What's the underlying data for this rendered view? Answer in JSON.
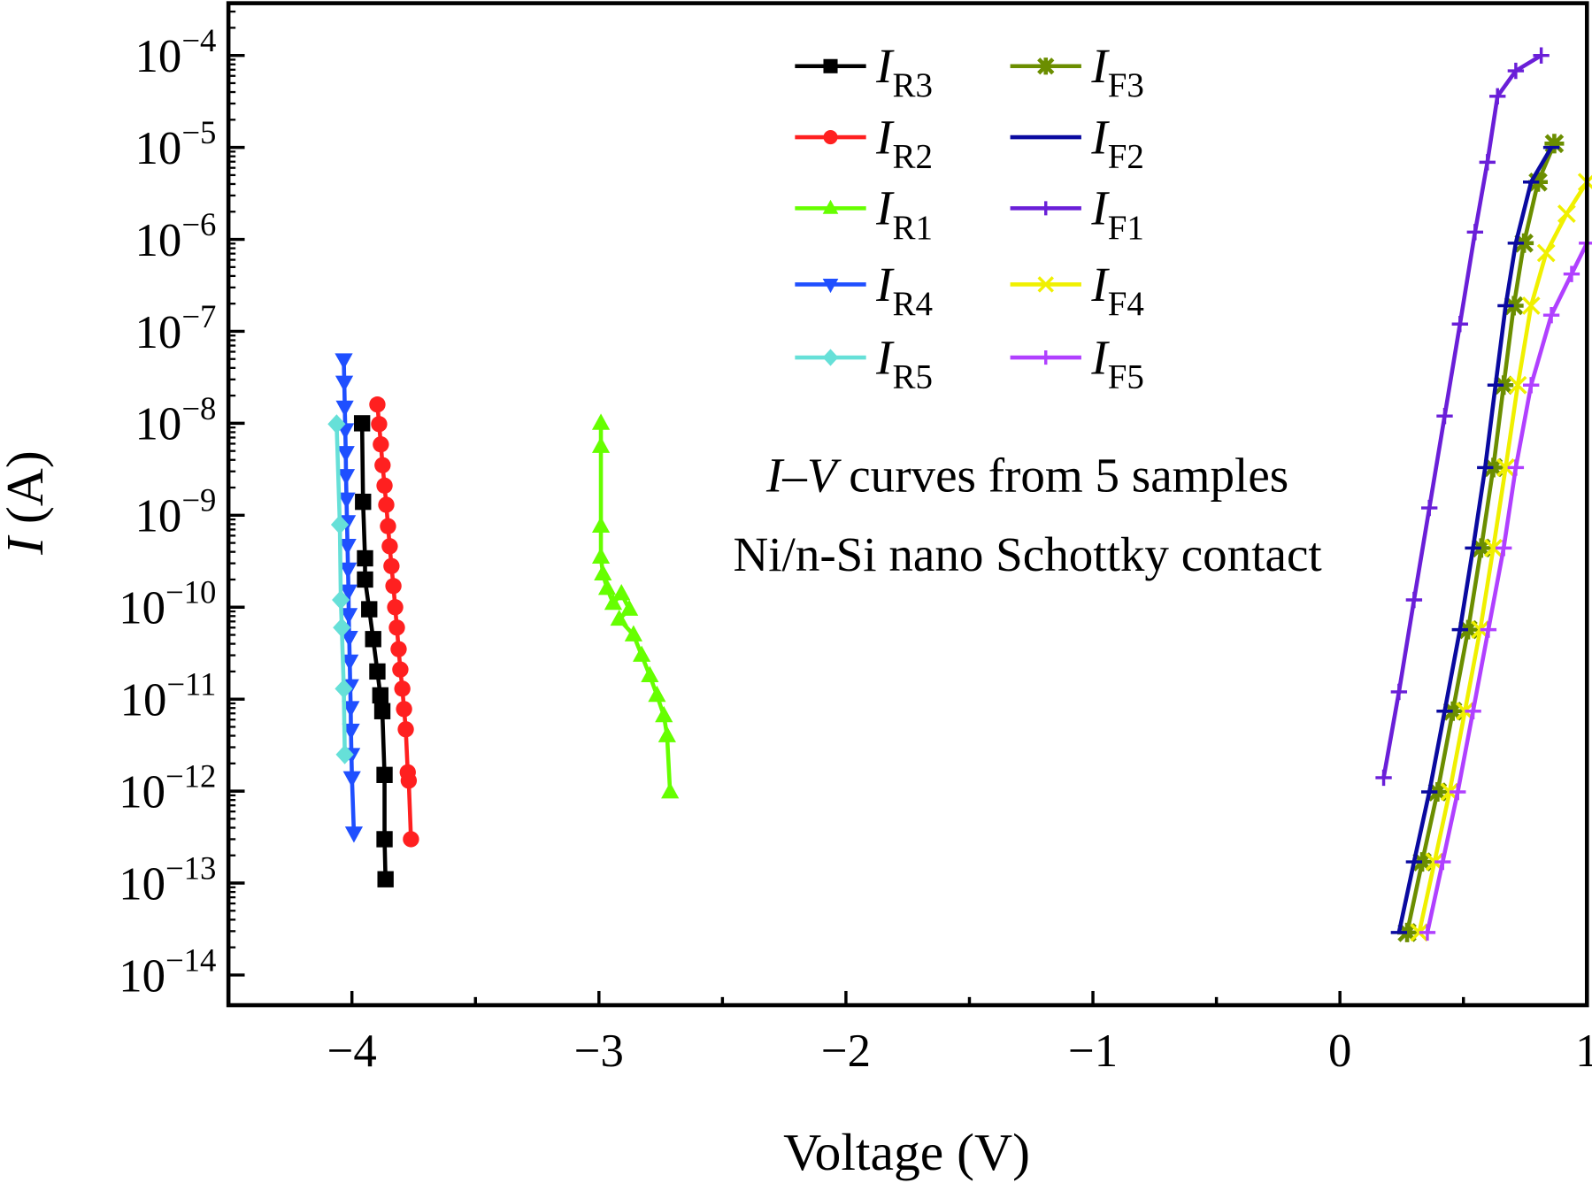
{
  "chart_data": {
    "type": "scatter",
    "xlabel": "Voltage (V)",
    "ylabel": {
      "main": "I",
      "unit": " (A)"
    },
    "xlim": [
      -4.5,
      1
    ],
    "ylim": [
      4.7e-15,
      0.00037
    ],
    "yscale": "log",
    "grid": false,
    "legend_placement": "top-center",
    "x_ticks": [
      -4,
      -3,
      -2,
      -1,
      0,
      1
    ],
    "x_tick_labels": [
      "−4",
      "−3",
      "−2",
      "−1",
      "0",
      "1"
    ],
    "y_ticks": [
      0.0001,
      1e-05,
      1e-06,
      1e-07,
      1e-08,
      1e-09,
      1e-10,
      1e-11,
      1e-12,
      1e-13,
      1e-14
    ],
    "y_tick_labels": [
      {
        "base": "10",
        "exp": "−4"
      },
      {
        "base": "10",
        "exp": "−5"
      },
      {
        "base": "10",
        "exp": "−6"
      },
      {
        "base": "10",
        "exp": "−7"
      },
      {
        "base": "10",
        "exp": "−8"
      },
      {
        "base": "10",
        "exp": "−9"
      },
      {
        "base": "10",
        "exp": "−10"
      },
      {
        "base": "10",
        "exp": "−11"
      },
      {
        "base": "10",
        "exp": "−12"
      },
      {
        "base": "10",
        "exp": "−13"
      },
      {
        "base": "10",
        "exp": "−14"
      }
    ],
    "annotations": [
      {
        "italic": "I–V",
        "text": " curves from 5 samples"
      },
      {
        "italic": "",
        "text": "Ni/n-Si  nano Schottky contact"
      }
    ],
    "series": [
      {
        "name": {
          "main": "I",
          "sub": "R3"
        },
        "color": "#000000",
        "marker": "square",
        "x": [
          -3.959,
          -3.955,
          -3.947,
          -3.947,
          -3.93,
          -3.914,
          -3.897,
          -3.885,
          -3.877,
          -3.868,
          -3.868,
          -3.864
        ],
        "y": [
          1e-08,
          1.4e-09,
          3.4e-10,
          2e-10,
          9.5e-11,
          4.5e-11,
          2e-11,
          1.1e-11,
          7.4e-12,
          1.5e-12,
          3e-13,
          1.1e-13
        ]
      },
      {
        "name": {
          "main": "I",
          "sub": "R2"
        },
        "color": "#ff2020",
        "marker": "circle",
        "x": [
          -3.897,
          -3.89,
          -3.883,
          -3.876,
          -3.868,
          -3.861,
          -3.854,
          -3.847,
          -3.84,
          -3.832,
          -3.825,
          -3.818,
          -3.811,
          -3.804,
          -3.796,
          -3.789,
          -3.782,
          -3.774,
          -3.77,
          -3.761
        ],
        "y": [
          1.6e-08,
          9.8e-09,
          5.9e-09,
          3.5e-09,
          2.1e-09,
          1.3e-09,
          7.6e-10,
          4.6e-10,
          2.8e-10,
          1.7e-10,
          1e-10,
          6e-11,
          3.5e-11,
          2.1e-11,
          1.3e-11,
          7.8e-12,
          4.7e-12,
          1.6e-12,
          1.3e-12,
          3e-13
        ]
      },
      {
        "name": {
          "main": "I",
          "sub": "R1"
        },
        "color": "#66ff00",
        "marker": "triangle-up",
        "x": [
          -2.992,
          -2.992,
          -2.992,
          -2.992,
          -2.984,
          -2.967,
          -2.942,
          -2.909,
          -2.877,
          -2.918,
          -2.86,
          -2.827,
          -2.794,
          -2.765,
          -2.737,
          -2.724,
          -2.712
        ],
        "y": [
          1e-08,
          5.6e-09,
          7.6e-10,
          3.5e-10,
          2.3e-10,
          1.6e-10,
          1.1e-10,
          1.4e-10,
          9.5e-11,
          7.4e-11,
          5e-11,
          3e-11,
          1.8e-11,
          1.1e-11,
          6.6e-12,
          4e-12,
          9.8e-13
        ]
      },
      {
        "name": {
          "main": "I",
          "sub": "R4"
        },
        "color": "#1f4fff",
        "marker": "triangle-down",
        "x": [
          -4.033,
          -4.031,
          -4.029,
          -4.027,
          -4.025,
          -4.024,
          -4.022,
          -4.02,
          -4.018,
          -4.016,
          -4.014,
          -4.013,
          -4.011,
          -4.009,
          -4.007,
          -4.005,
          -4.004,
          -4.002,
          -4.0,
          -3.992
        ],
        "y": [
          4.9e-08,
          2.8e-08,
          1.5e-08,
          8.5e-09,
          4.8e-09,
          2.7e-09,
          1.5e-09,
          8.5e-10,
          4.7e-10,
          2.6e-10,
          1.5e-10,
          8.3e-11,
          4.7e-11,
          2.6e-11,
          1.4e-11,
          8.1e-12,
          4.6e-12,
          2.5e-12,
          1.4e-12,
          3.5e-13
        ]
      },
      {
        "name": {
          "main": "I",
          "sub": "R5"
        },
        "color": "#66e0d8",
        "marker": "diamond",
        "x": [
          -4.062,
          -4.049,
          -4.045,
          -4.041,
          -4.033,
          -4.029
        ],
        "y": [
          9.8e-09,
          7.9e-10,
          1.2e-10,
          6e-11,
          1.3e-11,
          2.5e-12
        ]
      },
      {
        "name": {
          "main": "I",
          "sub": "F3"
        },
        "color": "#6b8e00",
        "marker": "star",
        "x": [
          0.272,
          0.333,
          0.395,
          0.457,
          0.519,
          0.572,
          0.621,
          0.663,
          0.704,
          0.745,
          0.802,
          0.868
        ],
        "y": [
          2.9e-14,
          1.7e-13,
          9.8e-13,
          7.4e-12,
          5.7e-11,
          4.4e-10,
          3.3e-09,
          2.6e-08,
          1.9e-07,
          9.1e-07,
          4.2e-06,
          1.1e-05
        ]
      },
      {
        "name": {
          "main": "I",
          "sub": "F2"
        },
        "color": "#0a0aa0",
        "marker": "hline",
        "x": [
          0.239,
          0.3,
          0.362,
          0.424,
          0.486,
          0.539,
          0.588,
          0.63,
          0.671,
          0.712,
          0.774,
          0.856
        ],
        "y": [
          2.9e-14,
          1.7e-13,
          9.8e-13,
          7.4e-12,
          5.7e-11,
          4.4e-10,
          3.3e-09,
          2.6e-08,
          1.9e-07,
          9.1e-07,
          4.2e-06,
          1e-05
        ]
      },
      {
        "name": {
          "main": "I",
          "sub": "F1"
        },
        "color": "#6a1fd8",
        "marker": "plus",
        "x": [
          0.177,
          0.239,
          0.3,
          0.362,
          0.424,
          0.486,
          0.547,
          0.597,
          0.638,
          0.712,
          0.815
        ],
        "y": [
          1.4e-12,
          1.2e-11,
          1.2e-10,
          1.2e-09,
          1.2e-08,
          1.2e-07,
          1.2e-06,
          6.9e-06,
          3.6e-05,
          6.8e-05,
          0.0001
        ]
      },
      {
        "name": {
          "main": "I",
          "sub": "F4"
        },
        "color": "#f0f000",
        "marker": "cross",
        "x": [
          0.321,
          0.383,
          0.444,
          0.506,
          0.568,
          0.621,
          0.671,
          0.72,
          0.774,
          0.835,
          0.918,
          1.0
        ],
        "y": [
          2.9e-14,
          1.7e-13,
          9.8e-13,
          7.4e-12,
          5.7e-11,
          4.4e-10,
          3.3e-09,
          2.6e-08,
          1.9e-07,
          7.1e-07,
          1.9e-06,
          4.2e-06
        ]
      },
      {
        "name": {
          "main": "I",
          "sub": "F5"
        },
        "color": "#b040ff",
        "marker": "plus",
        "x": [
          0.354,
          0.416,
          0.477,
          0.539,
          0.601,
          0.663,
          0.712,
          0.774,
          0.856,
          0.938,
          1.0
        ],
        "y": [
          2.9e-14,
          1.7e-13,
          9.8e-13,
          7.4e-12,
          5.7e-11,
          4.4e-10,
          3.3e-09,
          2.6e-08,
          1.5e-07,
          4.2e-07,
          9.1e-07
        ]
      }
    ]
  }
}
